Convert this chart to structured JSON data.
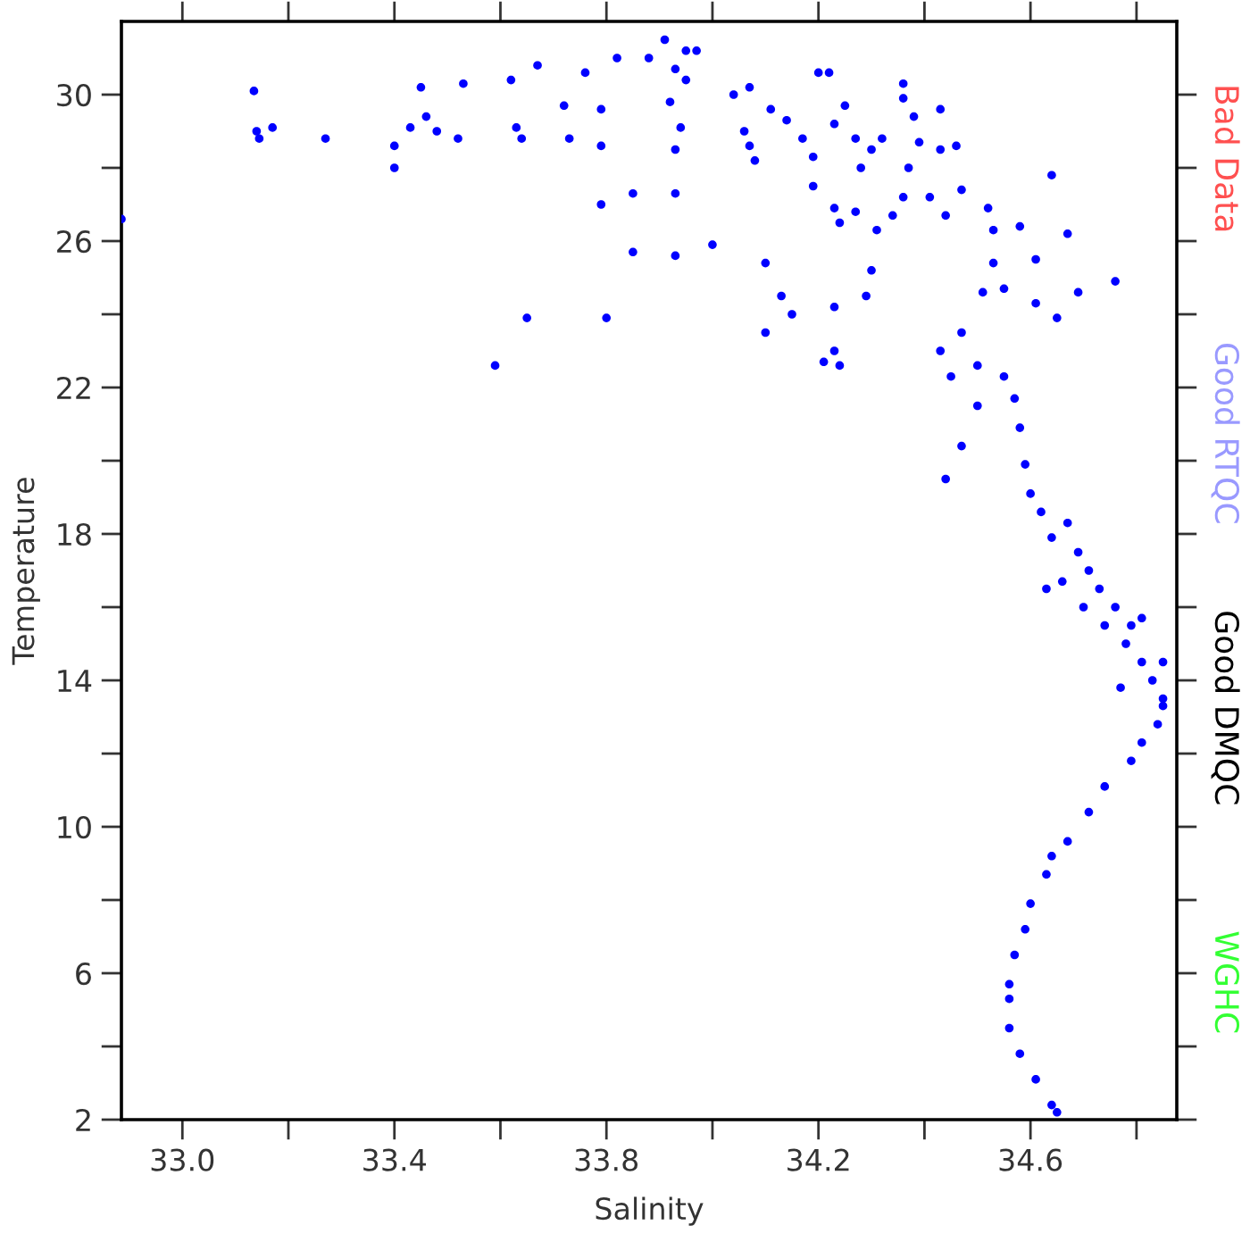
{
  "chart_data": {
    "type": "scatter",
    "xlabel": "Salinity",
    "ylabel": "Temperature",
    "annotations": [
      "Bad Data",
      "Good RTQC",
      "Good DMQC",
      "WGHC"
    ],
    "xlim": [
      32.885,
      34.876
    ],
    "ylim": [
      2,
      32
    ],
    "xticks": [
      {
        "value": 33.0,
        "label": "33.0"
      },
      {
        "value": 33.2,
        "label": null
      },
      33.4,
      {
        "value": 33.6,
        "label": null
      },
      33.8,
      {
        "value": 34.0,
        "label": null
      },
      34.2,
      {
        "value": 34.4,
        "label": null
      },
      34.6,
      {
        "value": 34.8,
        "label": null
      }
    ],
    "yticks": [
      2,
      {
        "value": 4,
        "label": null
      },
      6,
      {
        "value": 8,
        "label": null
      },
      10,
      {
        "value": 12,
        "label": null
      },
      14,
      {
        "value": 16,
        "label": null
      },
      18,
      {
        "value": 20,
        "label": null
      },
      22,
      {
        "value": 24,
        "label": null
      },
      26,
      {
        "value": 28,
        "label": null
      },
      30
    ],
    "marker": "circle",
    "grid": false,
    "legend": false,
    "series": [
      {
        "color": "#0000ff",
        "x": [
          32.885,
          33.135,
          33.14,
          33.145,
          33.17,
          33.27,
          33.4,
          33.4,
          33.43,
          33.45,
          33.46,
          33.48,
          33.52,
          33.53,
          33.62,
          33.63,
          33.64,
          33.67,
          33.72,
          33.73,
          33.76,
          33.79,
          33.79,
          33.82,
          33.88,
          33.91,
          33.92,
          33.93,
          33.95,
          33.97,
          33.95,
          33.94,
          33.93,
          33.79,
          33.85,
          33.93,
          33.93,
          34.0,
          33.85,
          33.8,
          33.65,
          33.59,
          34.04,
          34.07,
          34.07,
          34.06,
          34.08,
          34.11,
          34.14,
          34.17,
          34.19,
          34.2,
          34.22,
          34.23,
          34.23,
          34.19,
          34.25,
          34.27,
          34.28,
          34.3,
          34.32,
          34.36,
          34.36,
          34.38,
          34.39,
          34.37,
          34.36,
          34.34,
          34.27,
          34.24,
          34.31,
          34.3,
          34.29,
          34.23,
          34.23,
          34.24,
          34.1,
          34.1,
          34.13,
          34.15,
          34.21,
          34.43,
          34.43,
          34.46,
          34.41,
          34.44,
          34.47,
          34.52,
          34.53,
          34.53,
          34.51,
          34.58,
          34.55,
          34.61,
          34.61,
          34.64,
          34.67,
          34.69,
          34.76,
          34.65,
          34.47,
          34.43,
          34.5,
          34.45,
          34.55,
          34.57,
          34.5,
          34.44,
          34.47,
          34.58,
          34.59,
          34.6,
          34.62,
          34.67,
          34.64,
          34.69,
          34.71,
          34.73,
          34.76,
          34.79,
          34.78,
          34.81,
          34.83,
          34.85,
          34.85,
          34.84,
          34.81,
          34.79,
          34.74,
          34.71,
          34.67,
          34.64,
          34.63,
          34.6,
          34.59,
          34.57,
          34.56,
          34.56,
          34.56,
          34.58,
          34.61,
          34.64,
          34.65,
          34.74,
          34.7,
          34.66,
          34.81,
          34.85,
          34.63,
          34.77
        ],
        "values": [
          26.6,
          30.1,
          29.0,
          28.8,
          29.1,
          28.8,
          28.6,
          28.0,
          29.1,
          30.2,
          29.4,
          29.0,
          28.8,
          30.3,
          30.4,
          29.1,
          28.8,
          30.8,
          29.7,
          28.8,
          30.6,
          28.6,
          29.6,
          31.0,
          31.0,
          31.5,
          29.8,
          30.7,
          31.2,
          31.2,
          30.4,
          29.1,
          28.5,
          27.0,
          27.3,
          27.3,
          25.6,
          25.9,
          25.7,
          23.9,
          23.9,
          22.6,
          30.0,
          30.2,
          28.6,
          29.0,
          28.2,
          29.6,
          29.3,
          28.8,
          28.3,
          30.6,
          30.6,
          29.2,
          26.9,
          27.5,
          29.7,
          28.8,
          28.0,
          28.5,
          28.8,
          30.3,
          29.9,
          29.4,
          28.7,
          28.0,
          27.2,
          26.7,
          26.8,
          26.5,
          26.3,
          25.2,
          24.5,
          24.2,
          23.0,
          22.6,
          25.4,
          23.5,
          24.5,
          24.0,
          22.7,
          29.6,
          28.5,
          28.6,
          27.2,
          26.7,
          27.4,
          26.9,
          26.3,
          25.4,
          24.6,
          26.4,
          24.7,
          25.5,
          24.3,
          27.8,
          26.2,
          24.6,
          24.9,
          23.9,
          23.5,
          23.0,
          22.6,
          22.3,
          22.3,
          21.7,
          21.5,
          19.5,
          20.4,
          20.9,
          19.9,
          19.1,
          18.6,
          18.3,
          17.9,
          17.5,
          17.0,
          16.5,
          16.0,
          15.5,
          15.0,
          14.5,
          14.0,
          13.5,
          13.3,
          12.8,
          12.3,
          11.8,
          11.1,
          10.4,
          9.6,
          9.2,
          8.7,
          7.9,
          7.2,
          6.5,
          5.7,
          5.3,
          4.5,
          3.8,
          3.1,
          2.4,
          2.2,
          15.5,
          16.0,
          16.7,
          15.7,
          14.5,
          16.5,
          13.8
        ]
      }
    ]
  }
}
